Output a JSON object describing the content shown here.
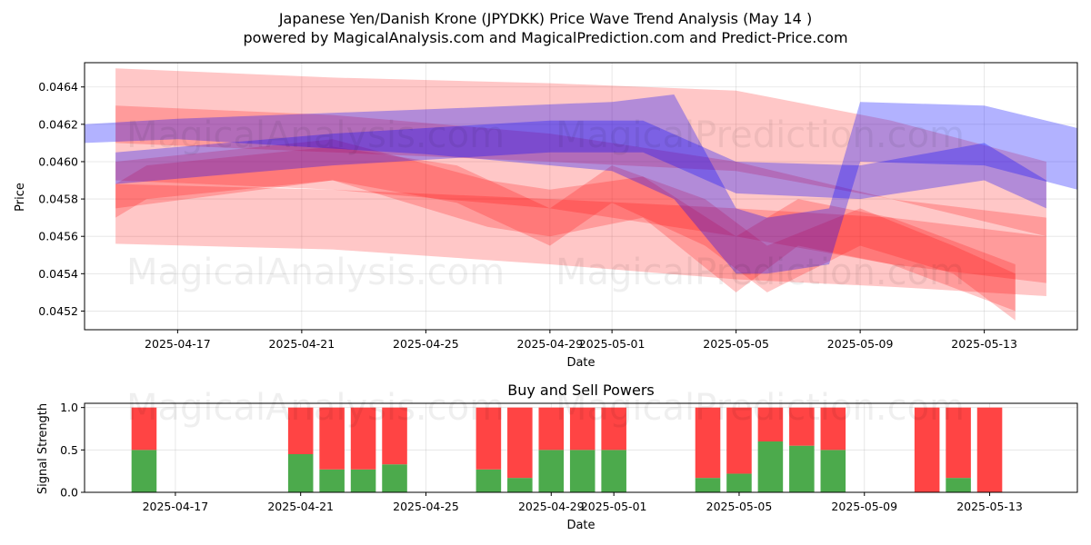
{
  "chart_data": [
    {
      "type": "area",
      "title": "Japanese Yen/Danish Krone (JPYDKK) Price Wave Trend Analysis (May 14 )",
      "subtitle": "powered by MagicalAnalysis.com and MagicalPrediction.com and Predict-Price.com",
      "xlabel": "Date",
      "ylabel": "Price",
      "x_ticks": [
        "2025-04-17",
        "2025-04-21",
        "2025-04-25",
        "2025-04-29",
        "2025-05-01",
        "2025-05-05",
        "2025-05-09",
        "2025-05-13"
      ],
      "y_ticks": [
        "0.0452",
        "0.0454",
        "0.0456",
        "0.0458",
        "0.0460",
        "0.0462",
        "0.0464"
      ],
      "xlim": [
        "2025-04-14",
        "2025-05-16"
      ],
      "ylim": [
        0.0451,
        0.04653
      ],
      "grid": true,
      "series": [
        {
          "color": "#ff0000",
          "x": [
            "2025-04-15",
            "2025-04-22",
            "2025-04-29",
            "2025-05-05",
            "2025-05-10",
            "2025-05-15"
          ],
          "upper": [
            0.0465,
            0.04645,
            0.04642,
            0.04638,
            0.04622,
            0.046
          ],
          "lower": [
            0.0461,
            0.04605,
            0.046,
            0.04595,
            0.0458,
            0.0456
          ]
        },
        {
          "color": "#ff0000",
          "x": [
            "2025-04-15",
            "2025-04-22",
            "2025-04-29",
            "2025-05-05",
            "2025-05-10",
            "2025-05-15"
          ],
          "upper": [
            0.0463,
            0.04625,
            0.04615,
            0.046,
            0.0458,
            0.0457
          ],
          "lower": [
            0.0459,
            0.04585,
            0.04575,
            0.0456,
            0.04545,
            0.04535
          ]
        },
        {
          "color": "#ff0000",
          "x": [
            "2025-04-15",
            "2025-04-22",
            "2025-04-29",
            "2025-05-05",
            "2025-05-10",
            "2025-05-15"
          ],
          "upper": [
            0.04588,
            0.04585,
            0.0458,
            0.04575,
            0.0457,
            0.0456
          ],
          "lower": [
            0.04556,
            0.04553,
            0.04545,
            0.04537,
            0.04533,
            0.04528
          ]
        },
        {
          "color": "#ff0000",
          "x": [
            "2025-04-15",
            "2025-04-16",
            "2025-04-22",
            "2025-04-26",
            "2025-04-29",
            "2025-05-01",
            "2025-05-04",
            "2025-05-06",
            "2025-05-09",
            "2025-05-12",
            "2025-05-14"
          ],
          "upper": [
            0.04588,
            0.04598,
            0.04608,
            0.04598,
            0.04575,
            0.04598,
            0.0458,
            0.04555,
            0.04575,
            0.04555,
            0.0454
          ],
          "lower": [
            0.0457,
            0.0458,
            0.0459,
            0.04578,
            0.04555,
            0.04578,
            0.04555,
            0.0453,
            0.04555,
            0.0454,
            0.04515
          ]
        },
        {
          "color": "#ff0000",
          "x": [
            "2025-04-15",
            "2025-04-22",
            "2025-04-27",
            "2025-04-29",
            "2025-05-02",
            "2025-05-05",
            "2025-05-07",
            "2025-05-10",
            "2025-05-14"
          ],
          "upper": [
            0.046,
            0.04612,
            0.0459,
            0.04585,
            0.04592,
            0.0456,
            0.0458,
            0.0457,
            0.04545
          ],
          "lower": [
            0.04575,
            0.0459,
            0.04565,
            0.0456,
            0.0457,
            0.0453,
            0.04555,
            0.04545,
            0.0452
          ]
        },
        {
          "color": "#0000ff",
          "x": [
            "2025-04-14",
            "2025-04-17",
            "2025-04-25",
            "2025-05-01",
            "2025-05-03",
            "2025-05-05",
            "2025-05-06",
            "2025-05-08",
            "2025-05-09",
            "2025-05-13",
            "2025-05-16"
          ],
          "upper": [
            0.0462,
            0.04623,
            0.04628,
            0.04632,
            0.04636,
            0.04575,
            0.0457,
            0.04575,
            0.04632,
            0.0463,
            0.04618
          ],
          "lower": [
            0.0461,
            0.04612,
            0.04604,
            0.04595,
            0.0458,
            0.0454,
            0.0454,
            0.04545,
            0.046,
            0.04598,
            0.04585
          ]
        },
        {
          "color": "#0000ff",
          "x": [
            "2025-04-15",
            "2025-04-22",
            "2025-04-29",
            "2025-05-02",
            "2025-05-05",
            "2025-05-09",
            "2025-05-13",
            "2025-05-15"
          ],
          "upper": [
            0.04605,
            0.04615,
            0.04622,
            0.04622,
            0.046,
            0.04598,
            0.0461,
            0.0459
          ],
          "lower": [
            0.04588,
            0.04598,
            0.04605,
            0.04605,
            0.04583,
            0.0458,
            0.0459,
            0.04575
          ]
        }
      ]
    },
    {
      "type": "bar",
      "title": "Buy and Sell Powers",
      "xlabel": "Date",
      "ylabel": "Signal Strength",
      "x_ticks": [
        "2025-04-17",
        "2025-04-21",
        "2025-04-25",
        "2025-04-29",
        "2025-05-01",
        "2025-05-05",
        "2025-05-09",
        "2025-05-13"
      ],
      "y_ticks": [
        "0.0",
        "0.5",
        "1.0"
      ],
      "ylim": [
        0,
        1.05
      ],
      "grid": true,
      "colors": {
        "buy": "#4caa4c",
        "sell": "#ff4444"
      },
      "x": [
        "2025-04-16",
        "2025-04-21",
        "2025-04-22",
        "2025-04-23",
        "2025-04-24",
        "2025-04-27",
        "2025-04-28",
        "2025-04-29",
        "2025-04-30",
        "2025-05-01",
        "2025-05-04",
        "2025-05-05",
        "2025-05-06",
        "2025-05-07",
        "2025-05-08",
        "2025-05-11",
        "2025-05-12",
        "2025-05-13"
      ],
      "buy": [
        0.5,
        0.45,
        0.27,
        0.27,
        0.33,
        0.27,
        0.17,
        0.5,
        0.5,
        0.5,
        0.17,
        0.22,
        0.6,
        0.55,
        0.5,
        0.0,
        0.17,
        0.0
      ],
      "sell": [
        0.5,
        0.55,
        0.73,
        0.73,
        0.67,
        0.73,
        0.83,
        0.5,
        0.5,
        0.5,
        0.83,
        0.78,
        0.4,
        0.45,
        0.5,
        1.0,
        0.83,
        1.0
      ]
    }
  ],
  "watermarks": [
    "MagicalAnalysis.com",
    "MagicalPrediction.com"
  ]
}
